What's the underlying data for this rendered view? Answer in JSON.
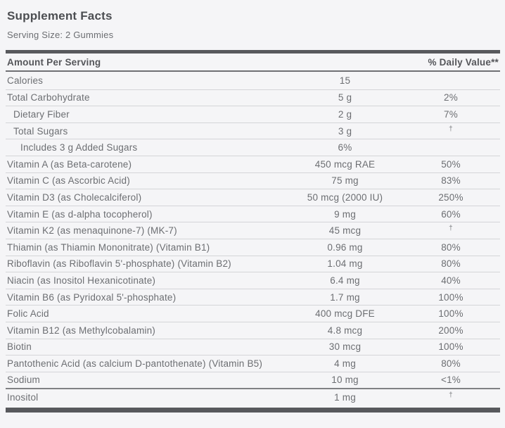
{
  "label": {
    "title": "Supplement Facts",
    "serving_size": "Serving Size: 2 Gummies"
  },
  "table": {
    "header": {
      "amount_col": "Amount Per Serving",
      "dv_col": "% Daily Value**"
    },
    "rows": [
      {
        "name": "Calories",
        "amount": "15",
        "dv": "",
        "indent": 0
      },
      {
        "name": "Total Carbohydrate",
        "amount": "5 g",
        "dv": "2%",
        "indent": 0
      },
      {
        "name": "Dietary Fiber",
        "amount": "2 g",
        "dv": "7%",
        "indent": 1
      },
      {
        "name": "Total Sugars",
        "amount": "3 g",
        "dv": "†",
        "indent": 1
      },
      {
        "name": "Includes 3 g Added Sugars",
        "amount": "6%",
        "dv": "",
        "indent": 2
      },
      {
        "name": "Vitamin A (as Beta-carotene)",
        "amount": "450 mcg RAE",
        "dv": "50%",
        "indent": 0
      },
      {
        "name": "Vitamin C (as Ascorbic Acid)",
        "amount": "75 mg",
        "dv": "83%",
        "indent": 0
      },
      {
        "name": "Vitamin D3 (as Cholecalciferol)",
        "amount": "50 mcg (2000 IU)",
        "dv": "250%",
        "indent": 0
      },
      {
        "name": "Vitamin E (as d-alpha tocopherol)",
        "amount": "9 mg",
        "dv": "60%",
        "indent": 0
      },
      {
        "name": "Vitamin K2 (as menaquinone-7) (MK-7)",
        "amount": "45 mcg",
        "dv": "†",
        "indent": 0
      },
      {
        "name": "Thiamin (as Thiamin Mononitrate) (Vitamin B1)",
        "amount": "0.96 mg",
        "dv": "80%",
        "indent": 0
      },
      {
        "name": "Riboflavin (as Riboflavin 5'-phosphate) (Vitamin B2)",
        "amount": "1.04 mg",
        "dv": "80%",
        "indent": 0
      },
      {
        "name": "Niacin (as Inositol Hexanicotinate)",
        "amount": "6.4 mg",
        "dv": "40%",
        "indent": 0
      },
      {
        "name": "Vitamin B6 (as Pyridoxal 5'-phosphate)",
        "amount": "1.7 mg",
        "dv": "100%",
        "indent": 0
      },
      {
        "name": "Folic Acid",
        "amount": "400 mcg DFE",
        "dv": "100%",
        "indent": 0
      },
      {
        "name": "Vitamin B12 (as Methylcobalamin)",
        "amount": "4.8 mcg",
        "dv": "200%",
        "indent": 0
      },
      {
        "name": "Biotin",
        "amount": "30 mcg",
        "dv": "100%",
        "indent": 0
      },
      {
        "name": "Pantothenic Acid (as calcium D-pantothenate) (Vitamin B5)",
        "amount": "4 mg",
        "dv": "80%",
        "indent": 0
      },
      {
        "name": "Sodium",
        "amount": "10 mg",
        "dv": "<1%",
        "indent": 0
      },
      {
        "name": "Inositol",
        "amount": "1 mg",
        "dv": "†",
        "indent": 0,
        "heavy_top": true
      }
    ]
  },
  "colors": {
    "background": "#f5f5f7",
    "bar": "#58595d",
    "separator": "#d4d5d8",
    "separator_dark": "#808184",
    "text": "#6c6e72",
    "text_dark": "#4c4e52"
  }
}
